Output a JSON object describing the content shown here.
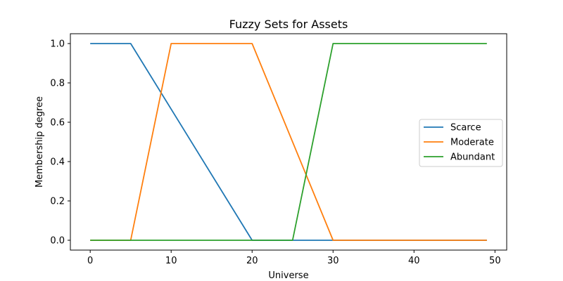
{
  "chart_data": {
    "type": "line",
    "title": "Fuzzy Sets for Assets",
    "xlabel": "Universe",
    "ylabel": "Membership degree",
    "xlim": [
      -2.45,
      51.45
    ],
    "ylim": [
      -0.05,
      1.05
    ],
    "xticks": [
      0,
      10,
      20,
      30,
      40,
      50
    ],
    "yticks": [
      0.0,
      0.2,
      0.4,
      0.6,
      0.8,
      1.0
    ],
    "xtick_labels": [
      "0",
      "10",
      "20",
      "30",
      "40",
      "50"
    ],
    "ytick_labels": [
      "0.0",
      "0.2",
      "0.4",
      "0.6",
      "0.8",
      "1.0"
    ],
    "grid": false,
    "legend_position": "center-right",
    "series": [
      {
        "name": "Scarce",
        "color": "#1f77b4",
        "x": [
          0,
          5,
          20,
          49
        ],
        "y": [
          1,
          1,
          0,
          0
        ]
      },
      {
        "name": "Moderate",
        "color": "#ff7f0e",
        "x": [
          0,
          5,
          10,
          20,
          30,
          49
        ],
        "y": [
          0,
          0,
          1,
          1,
          0,
          0
        ]
      },
      {
        "name": "Abundant",
        "color": "#2ca02c",
        "x": [
          0,
          25,
          30,
          49
        ],
        "y": [
          0,
          0,
          1,
          1
        ]
      }
    ]
  }
}
